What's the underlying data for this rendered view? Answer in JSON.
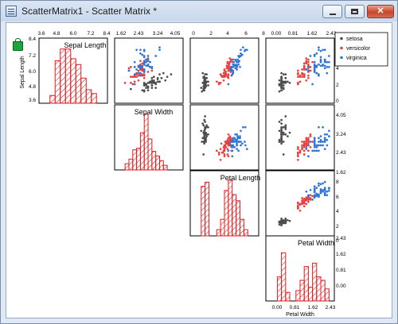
{
  "window": {
    "title": "ScatterMatrix1 - Scatter Matrix *",
    "controls": {
      "minimize": "minimize",
      "maximize": "maximize",
      "close": "✕"
    }
  },
  "colors": {
    "setosa": "#4d4d4d",
    "versicolor": "#e8403e",
    "virginica": "#2f74d8",
    "hist": "#e31a1c",
    "frame": "#000000",
    "title_bar": "#dbe6f4",
    "close_button": "#c9452c"
  },
  "chart_data": {
    "type": "scatter",
    "title": "",
    "variables": [
      "Sepal Length",
      "Sepal Width",
      "Petal Length",
      "Petal Width"
    ],
    "variable_ranges": [
      [
        3.6,
        8.4
      ],
      [
        1.62,
        4.86
      ],
      [
        0,
        8
      ],
      [
        -0.4,
        2.6
      ]
    ],
    "top_tick_labels": [
      [
        "3.6",
        "4.8",
        "6.0",
        "7.2",
        "8.4"
      ],
      [
        "1.62",
        "2.43",
        "3.24",
        "4.05"
      ],
      [
        "0",
        "2",
        "4",
        "6",
        "8"
      ],
      [
        "0.00",
        "0.81",
        "1.62",
        "2.43"
      ]
    ],
    "right_tick_labels": [
      [
        "8",
        "6",
        "4",
        "2",
        "0"
      ],
      [
        "4.05",
        "3.24",
        "2.43",
        "1.62"
      ],
      [
        "8",
        "6",
        "4",
        "2",
        "0"
      ],
      [
        "2.43",
        "1.62",
        "0.81",
        "0.00"
      ]
    ],
    "left_tick_labels": [
      "8.4",
      "7.2",
      "6.0",
      "4.8",
      "3.6"
    ],
    "bottom_tick_labels": [
      "0.00",
      "0.81",
      "1.62",
      "2.43"
    ],
    "y_axis_label": "Sepal Length",
    "x_axis_label": "Petal Width",
    "legend": {
      "position": "top-right",
      "items": [
        "setosa",
        "versicolor",
        "virginica"
      ]
    },
    "histograms": [
      {
        "variable": "Sepal Length",
        "bins": [
          [
            4.2,
            4.6,
            4
          ],
          [
            4.6,
            5.0,
            22
          ],
          [
            5.0,
            5.4,
            28
          ],
          [
            5.4,
            5.8,
            28
          ],
          [
            5.8,
            6.2,
            23
          ],
          [
            6.2,
            6.6,
            20
          ],
          [
            6.6,
            7.0,
            13
          ],
          [
            7.0,
            7.4,
            7
          ],
          [
            7.4,
            7.8,
            5
          ]
        ],
        "ymax": 32
      },
      {
        "variable": "Sepal Width",
        "bins": [
          [
            2.0,
            2.2,
            4
          ],
          [
            2.2,
            2.4,
            7
          ],
          [
            2.4,
            2.6,
            13
          ],
          [
            2.6,
            2.8,
            14
          ],
          [
            2.8,
            3.0,
            24
          ],
          [
            3.0,
            3.2,
            36
          ],
          [
            3.2,
            3.4,
            20
          ],
          [
            3.4,
            3.6,
            12
          ],
          [
            3.6,
            3.8,
            9
          ],
          [
            3.8,
            4.0,
            6
          ],
          [
            4.0,
            4.2,
            3
          ]
        ],
        "ymax": 40
      },
      {
        "variable": "Petal Length",
        "bins": [
          [
            1.0,
            1.5,
            24
          ],
          [
            1.5,
            2.0,
            26
          ],
          [
            3.0,
            3.5,
            3
          ],
          [
            3.5,
            4.0,
            8
          ],
          [
            4.0,
            4.5,
            22
          ],
          [
            4.5,
            5.0,
            27
          ],
          [
            5.0,
            5.5,
            20
          ],
          [
            5.5,
            6.0,
            17
          ],
          [
            6.0,
            6.5,
            8
          ],
          [
            6.5,
            7.0,
            3
          ]
        ],
        "ymax": 30
      },
      {
        "variable": "Petal Width",
        "bins": [
          [
            0.0,
            0.2,
            14
          ],
          [
            0.2,
            0.4,
            28
          ],
          [
            0.4,
            0.6,
            5
          ],
          [
            0.9,
            1.1,
            6
          ],
          [
            1.1,
            1.3,
            12
          ],
          [
            1.3,
            1.5,
            20
          ],
          [
            1.5,
            1.7,
            8
          ],
          [
            1.7,
            1.9,
            22
          ],
          [
            1.9,
            2.1,
            14
          ],
          [
            2.1,
            2.3,
            12
          ],
          [
            2.3,
            2.5,
            7
          ]
        ],
        "ymax": 36
      }
    ],
    "series": [
      {
        "name": "setosa",
        "x": [
          5.1,
          4.9,
          4.7,
          4.6,
          5.0,
          5.4,
          4.6,
          5.0,
          4.4,
          4.9,
          5.4,
          4.8,
          4.8,
          4.3,
          5.8,
          5.7,
          5.4,
          5.1,
          5.7,
          5.1,
          5.4,
          5.1,
          4.6,
          5.1,
          4.8,
          5.0,
          5.0,
          5.2,
          5.2,
          4.7,
          4.8,
          5.4,
          5.2,
          5.5,
          4.9,
          5.0,
          5.5,
          4.9,
          4.4,
          5.1,
          5.0,
          4.5,
          4.4,
          5.0,
          5.1,
          4.8,
          5.1,
          4.6,
          5.3,
          5.0
        ],
        "y": [
          3.5,
          3.0,
          3.2,
          3.1,
          3.6,
          3.9,
          3.4,
          3.4,
          2.9,
          3.1,
          3.7,
          3.4,
          3.0,
          3.0,
          4.0,
          4.4,
          3.9,
          3.5,
          3.8,
          3.8,
          3.4,
          3.7,
          3.6,
          3.3,
          3.4,
          3.0,
          3.4,
          3.5,
          3.4,
          3.2,
          3.1,
          3.4,
          4.1,
          4.2,
          3.1,
          3.2,
          3.5,
          3.6,
          3.0,
          3.4,
          3.5,
          2.3,
          3.2,
          3.5,
          3.8,
          3.0,
          3.8,
          3.2,
          3.7,
          3.3
        ],
        "petal_length": [
          1.4,
          1.4,
          1.3,
          1.5,
          1.4,
          1.7,
          1.4,
          1.5,
          1.4,
          1.5,
          1.5,
          1.6,
          1.4,
          1.1,
          1.2,
          1.5,
          1.3,
          1.4,
          1.7,
          1.5,
          1.7,
          1.5,
          1.0,
          1.7,
          1.9,
          1.6,
          1.6,
          1.5,
          1.4,
          1.6,
          1.6,
          1.5,
          1.5,
          1.4,
          1.5,
          1.2,
          1.3,
          1.4,
          1.3,
          1.5,
          1.3,
          1.3,
          1.3,
          1.6,
          1.9,
          1.4,
          1.6,
          1.4,
          1.5,
          1.4
        ],
        "petal_width": [
          0.2,
          0.2,
          0.2,
          0.2,
          0.2,
          0.4,
          0.3,
          0.2,
          0.2,
          0.1,
          0.2,
          0.2,
          0.1,
          0.1,
          0.2,
          0.4,
          0.4,
          0.3,
          0.3,
          0.3,
          0.2,
          0.4,
          0.2,
          0.5,
          0.2,
          0.2,
          0.4,
          0.2,
          0.2,
          0.2,
          0.2,
          0.4,
          0.1,
          0.2,
          0.2,
          0.2,
          0.2,
          0.1,
          0.2,
          0.2,
          0.3,
          0.3,
          0.2,
          0.6,
          0.4,
          0.3,
          0.2,
          0.2,
          0.2,
          0.2
        ]
      },
      {
        "name": "versicolor",
        "x": [
          7.0,
          6.4,
          6.9,
          5.5,
          6.5,
          5.7,
          6.3,
          4.9,
          6.6,
          5.2,
          5.0,
          5.9,
          6.0,
          6.1,
          5.6,
          6.7,
          5.6,
          5.8,
          6.2,
          5.6,
          5.9,
          6.1,
          6.3,
          6.1,
          6.4,
          6.6,
          6.8,
          6.7,
          6.0,
          5.7,
          5.5,
          5.5,
          5.8,
          6.0,
          5.4,
          6.0,
          6.7,
          6.3,
          5.6,
          5.5,
          5.5,
          6.1,
          5.8,
          5.0,
          5.6,
          5.7,
          5.7,
          6.2,
          5.1,
          5.7
        ],
        "y": [
          3.2,
          3.2,
          3.1,
          2.3,
          2.8,
          2.8,
          3.3,
          2.4,
          2.9,
          2.7,
          2.0,
          3.0,
          2.2,
          2.9,
          2.9,
          3.1,
          3.0,
          2.7,
          2.2,
          2.5,
          3.2,
          2.8,
          2.5,
          2.8,
          2.9,
          3.0,
          2.8,
          3.0,
          2.9,
          2.6,
          2.4,
          2.4,
          2.7,
          2.7,
          3.0,
          3.4,
          3.1,
          2.3,
          3.0,
          2.5,
          2.6,
          3.0,
          2.6,
          2.3,
          2.7,
          3.0,
          2.9,
          2.9,
          2.5,
          2.8
        ],
        "petal_length": [
          4.7,
          4.5,
          4.9,
          4.0,
          4.6,
          4.5,
          4.7,
          3.3,
          4.6,
          3.9,
          3.5,
          4.2,
          4.0,
          4.7,
          3.6,
          4.4,
          4.5,
          4.1,
          4.5,
          3.9,
          4.8,
          4.0,
          4.9,
          4.7,
          4.3,
          4.4,
          4.8,
          5.0,
          4.5,
          3.5,
          3.8,
          3.7,
          3.9,
          5.1,
          4.5,
          4.5,
          4.7,
          4.4,
          4.1,
          4.0,
          4.4,
          4.6,
          4.0,
          3.3,
          4.2,
          4.2,
          4.2,
          4.3,
          3.0,
          4.1
        ],
        "petal_width": [
          1.4,
          1.5,
          1.5,
          1.3,
          1.5,
          1.3,
          1.6,
          1.0,
          1.3,
          1.4,
          1.0,
          1.5,
          1.0,
          1.4,
          1.3,
          1.4,
          1.5,
          1.0,
          1.5,
          1.1,
          1.8,
          1.3,
          1.5,
          1.2,
          1.3,
          1.4,
          1.4,
          1.7,
          1.5,
          1.0,
          1.1,
          1.0,
          1.2,
          1.6,
          1.5,
          1.6,
          1.5,
          1.3,
          1.3,
          1.3,
          1.2,
          1.4,
          1.2,
          1.0,
          1.3,
          1.2,
          1.3,
          1.3,
          1.1,
          1.3
        ]
      },
      {
        "name": "virginica",
        "x": [
          6.3,
          5.8,
          7.1,
          6.3,
          6.5,
          7.6,
          4.9,
          7.3,
          6.7,
          7.2,
          6.5,
          6.4,
          6.8,
          5.7,
          5.8,
          6.4,
          6.5,
          7.7,
          7.7,
          6.0,
          6.9,
          5.6,
          7.7,
          6.3,
          6.7,
          7.2,
          6.2,
          6.1,
          6.4,
          7.2,
          7.4,
          7.9,
          6.4,
          6.3,
          6.1,
          7.7,
          6.3,
          6.4,
          6.0,
          6.9,
          6.7,
          6.9,
          5.8,
          6.8,
          6.7,
          6.7,
          6.3,
          6.5,
          6.2,
          5.9
        ],
        "y": [
          3.3,
          2.7,
          3.0,
          2.9,
          3.0,
          3.0,
          2.5,
          2.9,
          2.5,
          3.6,
          3.2,
          2.7,
          3.0,
          2.5,
          2.8,
          3.2,
          3.0,
          3.8,
          2.6,
          2.2,
          3.2,
          2.8,
          2.8,
          2.7,
          3.3,
          3.2,
          2.8,
          3.0,
          2.8,
          3.0,
          2.8,
          3.8,
          2.8,
          2.8,
          2.6,
          3.0,
          3.4,
          3.1,
          3.0,
          3.1,
          3.1,
          3.1,
          2.7,
          3.2,
          3.3,
          3.0,
          2.5,
          3.0,
          3.4,
          3.0
        ],
        "petal_length": [
          6.0,
          5.1,
          5.9,
          5.6,
          5.8,
          6.6,
          4.5,
          6.3,
          5.8,
          6.1,
          5.1,
          5.3,
          5.5,
          5.0,
          5.1,
          5.3,
          5.5,
          6.7,
          6.9,
          5.0,
          5.7,
          4.9,
          6.7,
          4.9,
          5.7,
          6.0,
          4.8,
          4.9,
          5.6,
          5.8,
          6.1,
          6.4,
          5.6,
          5.1,
          5.6,
          6.1,
          5.6,
          5.5,
          4.8,
          5.4,
          5.6,
          5.1,
          5.1,
          5.9,
          5.7,
          5.2,
          5.0,
          5.2,
          5.4,
          5.1
        ],
        "petal_width": [
          2.5,
          1.9,
          2.1,
          1.8,
          2.2,
          2.1,
          1.7,
          1.8,
          1.8,
          2.5,
          2.0,
          1.9,
          2.1,
          2.0,
          2.4,
          2.3,
          1.8,
          2.2,
          2.3,
          1.5,
          2.3,
          2.0,
          2.0,
          1.8,
          2.1,
          1.8,
          1.8,
          1.8,
          2.1,
          1.6,
          1.9,
          2.0,
          2.2,
          1.5,
          1.4,
          2.3,
          2.4,
          1.8,
          1.8,
          2.1,
          2.4,
          2.3,
          1.9,
          2.3,
          2.5,
          2.3,
          1.9,
          2.0,
          2.3,
          1.8
        ]
      }
    ]
  }
}
